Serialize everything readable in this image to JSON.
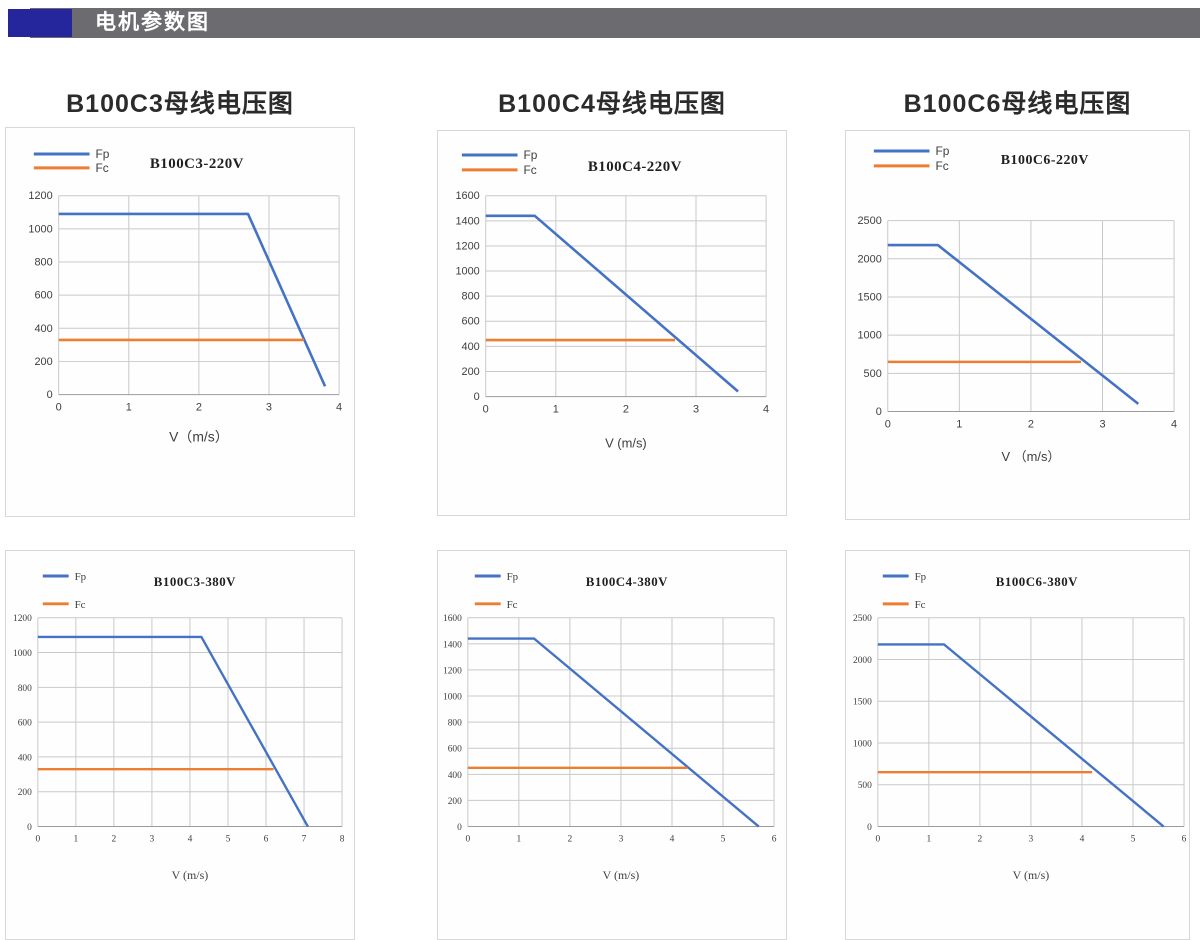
{
  "header": {
    "title": "电机参数图"
  },
  "colors": {
    "header_bar": "#6b6b70",
    "header_accent": "#26269c",
    "fp_blue": "#4472c4",
    "fc_orange": "#ed7d31",
    "grid": "#c9c9c9",
    "axis": "#9b9b9b",
    "panel_border": "#d7d7d7"
  },
  "group_titles": [
    "B100C3母线电压图",
    "B100C4母线电压图",
    "B100C6母线电压图"
  ],
  "chart_data": [
    {
      "type": "line",
      "title": "B100C3-220V",
      "xlabel": "V（m/s）",
      "xlim": [
        0,
        4
      ],
      "xticks": [
        0,
        1,
        2,
        3,
        4
      ],
      "ylim": [
        0,
        1200
      ],
      "yticks": [
        0,
        200,
        400,
        600,
        800,
        1000,
        1200
      ],
      "grid": true,
      "legend_position": "top-left",
      "series": [
        {
          "name": "Fp",
          "color": "#4472c4",
          "points": [
            [
              0,
              1090
            ],
            [
              2.7,
              1090
            ],
            [
              3.8,
              50
            ]
          ]
        },
        {
          "name": "Fc",
          "color": "#ed7d31",
          "points": [
            [
              0,
              330
            ],
            [
              3.5,
              330
            ]
          ]
        }
      ]
    },
    {
      "type": "line",
      "title": "B100C4-220V",
      "xlabel": "V (m/s)",
      "xlim": [
        0,
        4
      ],
      "xticks": [
        0,
        1,
        2,
        3,
        4
      ],
      "ylim": [
        0,
        1600
      ],
      "yticks": [
        0,
        200,
        400,
        600,
        800,
        1000,
        1200,
        1400,
        1600
      ],
      "grid": true,
      "legend_position": "top-left",
      "series": [
        {
          "name": "Fp",
          "color": "#4472c4",
          "points": [
            [
              0,
              1440
            ],
            [
              0.7,
              1440
            ],
            [
              3.6,
              40
            ]
          ]
        },
        {
          "name": "Fc",
          "color": "#ed7d31",
          "points": [
            [
              0,
              450
            ],
            [
              2.7,
              450
            ]
          ]
        }
      ]
    },
    {
      "type": "line",
      "title": "B100C6-220V",
      "xlabel": "V （m/s）",
      "xlim": [
        0,
        4
      ],
      "xticks": [
        0,
        1,
        2,
        3,
        4
      ],
      "ylim": [
        0,
        2500
      ],
      "yticks": [
        0,
        500,
        1000,
        1500,
        2000,
        2500
      ],
      "grid": true,
      "legend_position": "top-left",
      "series": [
        {
          "name": "Fp",
          "color": "#4472c4",
          "points": [
            [
              0,
              2180
            ],
            [
              0.7,
              2180
            ],
            [
              3.5,
              100
            ]
          ]
        },
        {
          "name": "Fc",
          "color": "#ed7d31",
          "points": [
            [
              0,
              650
            ],
            [
              2.7,
              650
            ]
          ]
        }
      ]
    },
    {
      "type": "line",
      "title": "B100C3-380V",
      "xlabel": "V (m/s)",
      "xlim": [
        0,
        8
      ],
      "xticks": [
        0,
        1,
        2,
        3,
        4,
        5,
        6,
        7,
        8
      ],
      "ylim": [
        0,
        1200
      ],
      "yticks": [
        0,
        200,
        400,
        600,
        800,
        1000,
        1200
      ],
      "grid": true,
      "legend_position": "top-left",
      "series": [
        {
          "name": "Fp",
          "color": "#4472c4",
          "points": [
            [
              0,
              1090
            ],
            [
              4.3,
              1090
            ],
            [
              7.1,
              0
            ]
          ]
        },
        {
          "name": "Fc",
          "color": "#ed7d31",
          "points": [
            [
              0,
              330
            ],
            [
              6.2,
              330
            ]
          ]
        }
      ]
    },
    {
      "type": "line",
      "title": "B100C4-380V",
      "xlabel": "V (m/s)",
      "xlim": [
        0,
        6
      ],
      "xticks": [
        0,
        1,
        2,
        3,
        4,
        5,
        6
      ],
      "ylim": [
        0,
        1600
      ],
      "yticks": [
        0,
        200,
        400,
        600,
        800,
        1000,
        1200,
        1400,
        1600
      ],
      "grid": true,
      "legend_position": "top-left",
      "series": [
        {
          "name": "Fp",
          "color": "#4472c4",
          "points": [
            [
              0,
              1440
            ],
            [
              1.3,
              1440
            ],
            [
              5.7,
              0
            ]
          ]
        },
        {
          "name": "Fc",
          "color": "#ed7d31",
          "points": [
            [
              0,
              450
            ],
            [
              4.3,
              450
            ]
          ]
        }
      ]
    },
    {
      "type": "line",
      "title": "B100C6-380V",
      "xlabel": "V (m/s)",
      "xlim": [
        0,
        6
      ],
      "xticks": [
        0,
        1,
        2,
        3,
        4,
        5,
        6
      ],
      "ylim": [
        0,
        2500
      ],
      "yticks": [
        0,
        500,
        1000,
        1500,
        2000,
        2500
      ],
      "grid": true,
      "legend_position": "top-left",
      "series": [
        {
          "name": "Fp",
          "color": "#4472c4",
          "points": [
            [
              0,
              2180
            ],
            [
              1.3,
              2180
            ],
            [
              5.6,
              0
            ]
          ]
        },
        {
          "name": "Fc",
          "color": "#ed7d31",
          "points": [
            [
              0,
              650
            ],
            [
              4.2,
              650
            ]
          ]
        }
      ]
    }
  ]
}
